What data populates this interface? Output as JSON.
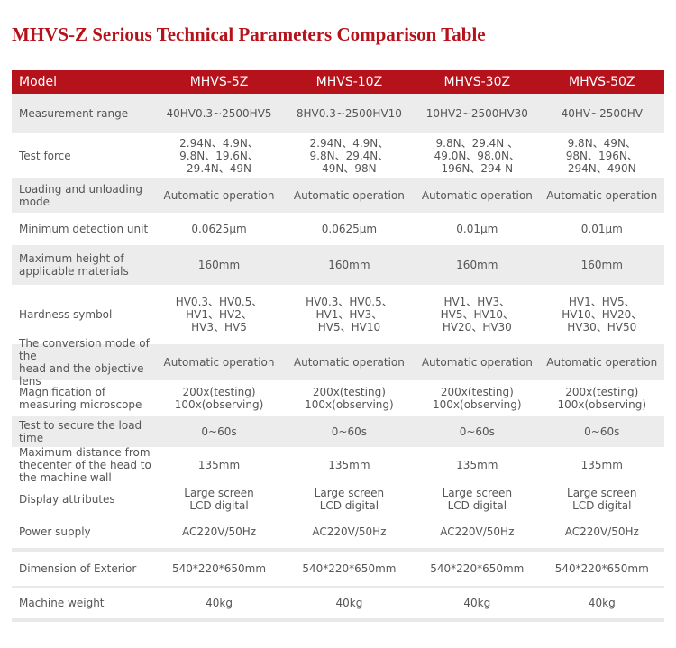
{
  "title": "MHVS-Z Serious Technical Parameters Comparison Table",
  "header": [
    "Model",
    "MHVS-5Z",
    "MHVS-10Z",
    "MHVS-30Z",
    "MHVS-50Z"
  ],
  "rows": [
    {
      "label": [
        "Measurement range"
      ],
      "cells": [
        [
          "40HV0.3~2500HV5"
        ],
        [
          "8HV0.3~2500HV10"
        ],
        [
          "10HV2~2500HV30"
        ],
        [
          "40HV~2500HV"
        ]
      ]
    },
    {
      "label": [
        "Test force"
      ],
      "cells": [
        [
          "2.94N、4.9N、",
          "9.8N、19.6N、",
          "29.4N、49N"
        ],
        [
          "2.94N、4.9N、",
          "9.8N、29.4N、",
          "49N、98N"
        ],
        [
          "9.8N、29.4N 、",
          "49.0N、98.0N、",
          "196N、294 N"
        ],
        [
          "9.8N、49N、",
          "98N、196N、",
          "294N、490N"
        ]
      ]
    },
    {
      "label": [
        "Loading and unloading mode"
      ],
      "cells": [
        [
          "Automatic operation"
        ],
        [
          "Automatic operation"
        ],
        [
          "Automatic operation"
        ],
        [
          "Automatic operation"
        ]
      ]
    },
    {
      "label": [
        "Minimum detection unit"
      ],
      "cells": [
        [
          "0.0625μm"
        ],
        [
          "0.0625μm"
        ],
        [
          "0.01μm"
        ],
        [
          "0.01μm"
        ]
      ]
    },
    {
      "label": [
        "Maximum height of",
        "applicable materials"
      ],
      "cells": [
        [
          "160mm"
        ],
        [
          "160mm"
        ],
        [
          "160mm"
        ],
        [
          "160mm"
        ]
      ]
    },
    {
      "label": [
        "Hardness symbol"
      ],
      "cells": [
        [
          "HV0.3、HV0.5、",
          "HV1、HV2、",
          "HV3、HV5"
        ],
        [
          "HV0.3、HV0.5、",
          "HV1、HV3、",
          "HV5、HV10"
        ],
        [
          "HV1、HV3、",
          "HV5、HV10、",
          "HV20、HV30"
        ],
        [
          "HV1、HV5、",
          "HV10、HV20、",
          "HV30、HV50"
        ]
      ]
    },
    {
      "label": [
        "The conversion mode of the",
        "head and the objective lens"
      ],
      "cells": [
        [
          "Automatic operation"
        ],
        [
          "Automatic operation"
        ],
        [
          "Automatic operation"
        ],
        [
          "Automatic operation"
        ]
      ]
    },
    {
      "label": [
        "Magnification of",
        "measuring microscope"
      ],
      "cells": [
        [
          "200x(testing)",
          "100x(observing)"
        ],
        [
          "200x(testing)",
          "100x(observing)"
        ],
        [
          "200x(testing)",
          "100x(observing)"
        ],
        [
          "200x(testing)",
          "100x(observing)"
        ]
      ]
    },
    {
      "label": [
        "Test to secure the load time"
      ],
      "cells": [
        [
          "0~60s"
        ],
        [
          "0~60s"
        ],
        [
          "0~60s"
        ],
        [
          "0~60s"
        ]
      ]
    },
    {
      "label": [
        "Maximum distance from",
        "thecenter of the head to",
        "the machine wall"
      ],
      "cells": [
        [
          "135mm"
        ],
        [
          "135mm"
        ],
        [
          "135mm"
        ],
        [
          "135mm"
        ]
      ]
    },
    {
      "label": [
        "Display attributes"
      ],
      "cells": [
        [
          "Large screen",
          "LCD digital"
        ],
        [
          "Large screen",
          "LCD digital"
        ],
        [
          "Large screen",
          "LCD digital"
        ],
        [
          "Large screen",
          "LCD digital"
        ]
      ]
    },
    {
      "label": [
        "Power supply"
      ],
      "cells": [
        [
          "AC220V/50Hz"
        ],
        [
          "AC220V/50Hz"
        ],
        [
          "AC220V/50Hz"
        ],
        [
          "AC220V/50Hz"
        ]
      ]
    },
    {
      "label": [
        "Dimension of Exterior"
      ],
      "cells": [
        [
          "540*220*650mm"
        ],
        [
          "540*220*650mm"
        ],
        [
          "540*220*650mm"
        ],
        [
          "540*220*650mm"
        ]
      ]
    },
    {
      "label": [
        "Machine weight"
      ],
      "cells": [
        [
          "40kg"
        ],
        [
          "40kg"
        ],
        [
          "40kg"
        ],
        [
          "40kg"
        ]
      ]
    }
  ],
  "colors": {
    "accent": "#b5121b"
  }
}
